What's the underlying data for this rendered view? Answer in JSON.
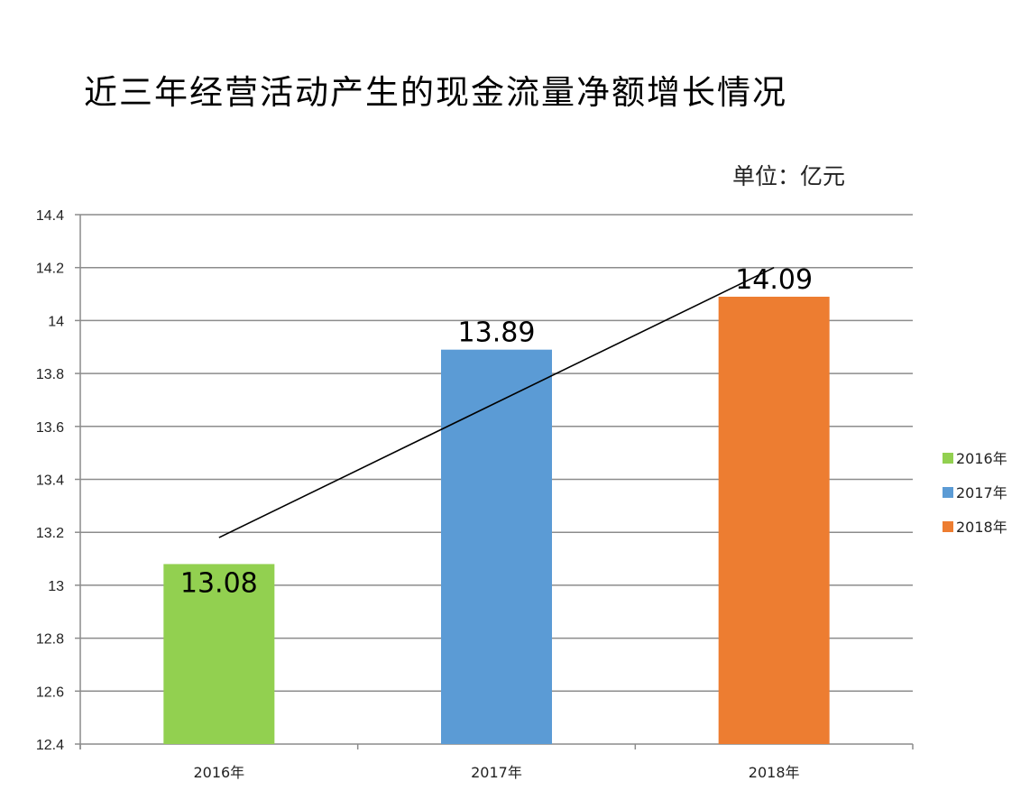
{
  "chart_data": {
    "type": "bar",
    "title": "近三年经营活动产生的现金流量净额增长情况",
    "unit": "单位：亿元",
    "categories": [
      "2016年",
      "2017年",
      "2018年"
    ],
    "values": [
      13.08,
      13.89,
      14.09
    ],
    "data_labels": [
      "13.08",
      "13.89",
      "14.09"
    ],
    "colors": [
      "#92d050",
      "#5b9bd5",
      "#ed7d31"
    ],
    "ylim": [
      12.4,
      14.4
    ],
    "yticks": [
      "12.4",
      "12.6",
      "12.8",
      "13",
      "13.2",
      "13.4",
      "13.6",
      "13.8",
      "14",
      "14.2",
      "14.4"
    ],
    "grid": true,
    "legend": {
      "placement": "right",
      "entries": [
        "2016年",
        "2017年",
        "2018年"
      ]
    },
    "trendline": {
      "type": "linear",
      "start": 13.18,
      "end": 14.2,
      "color": "#000000"
    }
  }
}
